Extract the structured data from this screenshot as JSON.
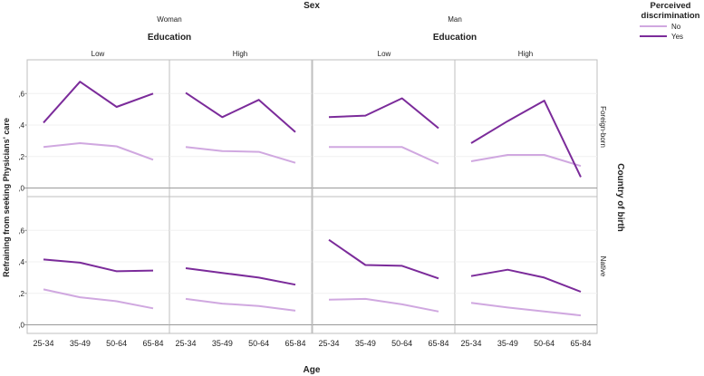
{
  "chart_data": {
    "type": "line",
    "title": "Sex",
    "column_facets": [
      {
        "label": "Woman",
        "sub_title": "Education",
        "levels": [
          "Low",
          "High"
        ]
      },
      {
        "label": "Man",
        "sub_title": "Education",
        "levels": [
          "Low",
          "High"
        ]
      }
    ],
    "row_facet_title": "Country of birth",
    "row_facets": [
      "Foreign-born",
      "Native"
    ],
    "xlabel": "Age",
    "ylabel": "Refraining from seeking Physicians' care",
    "categories": [
      "25-34",
      "35-49",
      "50-64",
      "65-84"
    ],
    "y_ticks": [
      ",0",
      ",2",
      ",4",
      ",6"
    ],
    "ylim": [
      -0.02,
      0.78
    ],
    "grid": false,
    "legend": {
      "title": "Perceived discrimination",
      "position": "top-right",
      "entries": [
        {
          "name": "No",
          "color": "#d0a8e0"
        },
        {
          "name": "Yes",
          "color": "#7b2b9a"
        }
      ]
    },
    "panels": [
      {
        "row": 0,
        "col": 0,
        "series": [
          {
            "name": "No",
            "values": [
              0.26,
              0.285,
              0.265,
              0.18
            ]
          },
          {
            "name": "Yes",
            "values": [
              0.415,
              0.675,
              0.515,
              0.6
            ]
          }
        ]
      },
      {
        "row": 0,
        "col": 1,
        "series": [
          {
            "name": "No",
            "values": [
              0.26,
              0.235,
              0.23,
              0.16
            ]
          },
          {
            "name": "Yes",
            "values": [
              0.605,
              0.45,
              0.56,
              0.355
            ]
          }
        ]
      },
      {
        "row": 0,
        "col": 2,
        "series": [
          {
            "name": "No",
            "values": [
              0.26,
              0.26,
              0.26,
              0.155
            ]
          },
          {
            "name": "Yes",
            "values": [
              0.45,
              0.46,
              0.57,
              0.38
            ]
          }
        ]
      },
      {
        "row": 0,
        "col": 3,
        "series": [
          {
            "name": "No",
            "values": [
              0.17,
              0.21,
              0.21,
              0.14
            ]
          },
          {
            "name": "Yes",
            "values": [
              0.285,
              0.425,
              0.555,
              0.07
            ]
          }
        ]
      },
      {
        "row": 1,
        "col": 0,
        "series": [
          {
            "name": "No",
            "values": [
              0.225,
              0.175,
              0.15,
              0.105
            ]
          },
          {
            "name": "Yes",
            "values": [
              0.415,
              0.395,
              0.34,
              0.345
            ]
          }
        ]
      },
      {
        "row": 1,
        "col": 1,
        "series": [
          {
            "name": "No",
            "values": [
              0.165,
              0.135,
              0.12,
              0.09
            ]
          },
          {
            "name": "Yes",
            "values": [
              0.36,
              0.33,
              0.3,
              0.255
            ]
          }
        ]
      },
      {
        "row": 1,
        "col": 2,
        "series": [
          {
            "name": "No",
            "values": [
              0.16,
              0.165,
              0.13,
              0.085
            ]
          },
          {
            "name": "Yes",
            "values": [
              0.54,
              0.38,
              0.375,
              0.295
            ]
          }
        ]
      },
      {
        "row": 1,
        "col": 3,
        "series": [
          {
            "name": "No",
            "values": [
              0.14,
              0.11,
              0.085,
              0.06
            ]
          },
          {
            "name": "Yes",
            "values": [
              0.31,
              0.35,
              0.3,
              0.21
            ]
          }
        ]
      }
    ]
  }
}
